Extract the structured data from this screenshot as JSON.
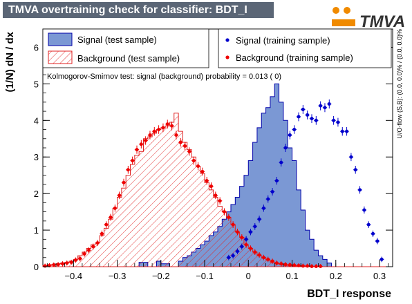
{
  "header": {
    "title": "TMVA overtraining check for classifier: BDT_I",
    "logo_text": "TMVA"
  },
  "legend": {
    "signal_test": "Signal (test sample)",
    "signal_train": "Signal (training sample)",
    "background_test": "Background (test sample)",
    "background_train": "Background (training sample)"
  },
  "ks_text": "Kolmogorov-Smirnov test: signal (background) probability = 0.013 (    0)",
  "side_text": "U/O-flow (S,B): (0.0, 0.0)% / (0.0, 0.0)%",
  "colors": {
    "signal_fill": "#7b98d4",
    "signal_line": "#0000aa",
    "background_line": "#e02020",
    "signal_marker": "#0000cc",
    "background_marker": "#ee0000",
    "logo_accent": "#f08a00"
  },
  "chart_data": {
    "type": "histogram",
    "xlabel": "BDT_I response",
    "ylabel": "(1/N) dN / dx",
    "xlim": [
      -0.47,
      0.33
    ],
    "ylim": [
      0,
      6.5
    ],
    "x_ticks": [
      -0.4,
      -0.3,
      -0.2,
      -0.1,
      0,
      0.1,
      0.2,
      0.3
    ],
    "x_tick_labels": [
      "−0.4",
      "−0.3",
      "−0.2",
      "−0.1",
      "0",
      "0.1",
      "0.2",
      "0.3"
    ],
    "y_ticks": [
      0,
      1,
      2,
      3,
      4,
      5,
      6
    ],
    "y_tick_labels": [
      "0",
      "1",
      "2",
      "3",
      "4",
      "5",
      "6"
    ],
    "bin_edges": [
      -0.47,
      -0.46,
      -0.45,
      -0.44,
      -0.43,
      -0.42,
      -0.41,
      -0.4,
      -0.39,
      -0.38,
      -0.37,
      -0.36,
      -0.35,
      -0.34,
      -0.33,
      -0.32,
      -0.31,
      -0.3,
      -0.29,
      -0.28,
      -0.27,
      -0.26,
      -0.25,
      -0.24,
      -0.23,
      -0.22,
      -0.21,
      -0.2,
      -0.19,
      -0.18,
      -0.17,
      -0.16,
      -0.15,
      -0.14,
      -0.13,
      -0.12,
      -0.11,
      -0.1,
      -0.09,
      -0.08,
      -0.07,
      -0.06,
      -0.05,
      -0.04,
      -0.03,
      -0.02,
      -0.01,
      0.0,
      0.01,
      0.02,
      0.03,
      0.04,
      0.05,
      0.06,
      0.07,
      0.08,
      0.09,
      0.1,
      0.11,
      0.12,
      0.13,
      0.14,
      0.15,
      0.16,
      0.17,
      0.18,
      0.19,
      0.2,
      0.21,
      0.22,
      0.23,
      0.24,
      0.25,
      0.26,
      0.27,
      0.28,
      0.29,
      0.3,
      0.31,
      0.32,
      0.33
    ],
    "series": [
      {
        "name": "Signal (test sample)",
        "kind": "filled_histogram",
        "values": [
          0,
          0,
          0,
          0,
          0,
          0,
          0,
          0,
          0,
          0,
          0,
          0,
          0,
          0,
          0,
          0,
          0,
          0,
          0,
          0,
          0,
          0,
          0.12,
          0.12,
          0,
          0,
          0.15,
          0.08,
          0.08,
          0,
          0,
          0.15,
          0.25,
          0.3,
          0.4,
          0.5,
          0.6,
          0.7,
          0.85,
          0.95,
          1.1,
          1.3,
          1.5,
          1.7,
          1.9,
          2.2,
          2.5,
          2.9,
          3.4,
          3.8,
          4.2,
          4.35,
          4.65,
          5.0,
          4.5,
          4.0,
          3.25,
          2.9,
          2.1,
          1.55,
          1.0,
          0.75,
          0.45,
          0.3,
          0.2,
          0.1,
          0.0,
          0.0,
          0.0,
          0.0,
          0.0,
          0.0,
          0.0,
          0.0,
          0.0,
          0.0,
          0.0,
          0.0,
          0.0
        ]
      },
      {
        "name": "Background (test sample)",
        "kind": "hatched_histogram",
        "values": [
          0.03,
          0.05,
          0.06,
          0.08,
          0.1,
          0.12,
          0.15,
          0.2,
          0.3,
          0.4,
          0.5,
          0.6,
          0.65,
          0.85,
          1.05,
          1.3,
          1.6,
          1.9,
          2.15,
          2.5,
          2.8,
          3.05,
          3.15,
          3.5,
          3.55,
          3.65,
          3.75,
          3.8,
          3.85,
          3.95,
          4.2,
          3.7,
          3.4,
          3.2,
          3.0,
          2.75,
          2.55,
          2.3,
          2.1,
          1.9,
          1.65,
          1.5,
          1.35,
          1.15,
          0.95,
          0.8,
          0.6,
          0.5,
          0.4,
          0.3,
          0.25,
          0.18,
          0.12,
          0.08,
          0.06,
          0.04,
          0.03,
          0.02,
          0.02,
          0.01,
          0.01,
          0.0,
          0.0,
          0.0,
          0.0,
          0.0,
          0.0,
          0.0,
          0.0,
          0.0,
          0.0,
          0.0,
          0.0,
          0.0,
          0.0,
          0.0,
          0.0,
          0.0,
          0.0,
          0.0
        ]
      },
      {
        "name": "Signal (training sample)",
        "kind": "points",
        "x": [
          -0.045,
          -0.035,
          -0.025,
          -0.015,
          -0.005,
          0.005,
          0.015,
          0.025,
          0.035,
          0.045,
          0.055,
          0.065,
          0.075,
          0.085,
          0.095,
          0.105,
          0.115,
          0.125,
          0.135,
          0.145,
          0.155,
          0.165,
          0.175,
          0.185,
          0.195,
          0.205,
          0.215,
          0.225,
          0.235,
          0.245,
          0.255,
          0.265,
          0.275,
          0.285,
          0.295,
          0.305
        ],
        "y": [
          0.25,
          0.3,
          0.42,
          0.55,
          0.75,
          0.95,
          1.1,
          1.3,
          1.6,
          1.85,
          2.05,
          2.35,
          2.85,
          3.25,
          3.6,
          3.75,
          4.1,
          4.3,
          4.15,
          4.05,
          4.0,
          4.4,
          4.35,
          4.45,
          4.0,
          3.95,
          3.7,
          3.7,
          3.0,
          2.65,
          2.1,
          1.55,
          1.15,
          0.9,
          0.7,
          0.2
        ]
      },
      {
        "name": "Background (training sample)",
        "kind": "points",
        "x": [
          -0.465,
          -0.455,
          -0.445,
          -0.435,
          -0.425,
          -0.415,
          -0.405,
          -0.395,
          -0.385,
          -0.375,
          -0.365,
          -0.355,
          -0.345,
          -0.335,
          -0.325,
          -0.315,
          -0.305,
          -0.295,
          -0.285,
          -0.275,
          -0.265,
          -0.255,
          -0.245,
          -0.235,
          -0.225,
          -0.215,
          -0.205,
          -0.195,
          -0.185,
          -0.175,
          -0.165,
          -0.155,
          -0.145,
          -0.135,
          -0.125,
          -0.115,
          -0.105,
          -0.095,
          -0.085,
          -0.075,
          -0.065,
          -0.055,
          -0.045,
          -0.035,
          -0.025,
          -0.015,
          -0.005,
          0.005,
          0.015,
          0.025,
          0.035,
          0.045,
          0.055,
          0.065,
          0.075,
          0.085,
          0.095,
          0.105,
          0.115,
          0.125,
          0.135,
          0.145,
          0.155,
          0.165
        ],
        "y": [
          0.02,
          0.03,
          0.05,
          0.06,
          0.08,
          0.1,
          0.12,
          0.18,
          0.22,
          0.35,
          0.45,
          0.55,
          0.65,
          0.9,
          1.15,
          1.35,
          1.6,
          1.95,
          2.3,
          2.65,
          2.9,
          3.2,
          3.35,
          3.45,
          3.6,
          3.7,
          3.75,
          3.8,
          3.9,
          3.85,
          3.6,
          3.4,
          3.3,
          3.15,
          2.9,
          2.75,
          2.6,
          2.35,
          2.2,
          1.95,
          1.8,
          1.5,
          1.35,
          1.15,
          0.95,
          0.8,
          0.6,
          0.5,
          0.4,
          0.32,
          0.25,
          0.2,
          0.15,
          0.1,
          0.08,
          0.06,
          0.05,
          0.04,
          0.03,
          0.02,
          0.02,
          0.01,
          0.01,
          0.01
        ]
      }
    ]
  }
}
